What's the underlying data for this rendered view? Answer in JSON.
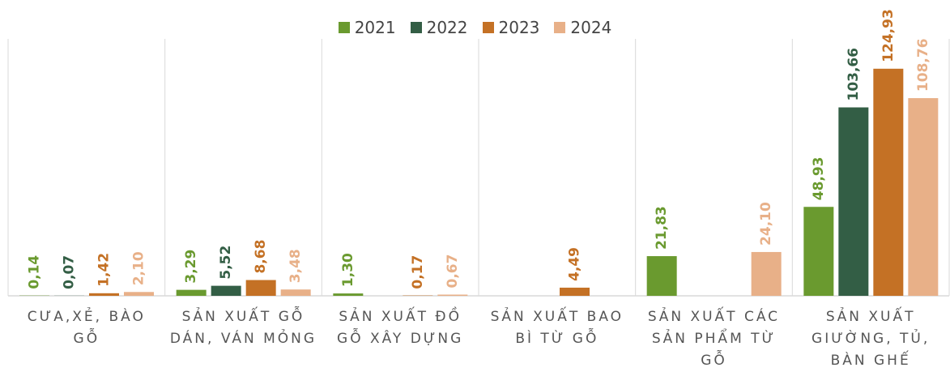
{
  "chart_data": {
    "type": "bar",
    "categories": [
      "CƯA,XẺ, BÀO GỖ",
      "SẢN XUẤT GỖ DÁN, VÁN MỎNG",
      "SẢN XUẤT ĐỒ GỖ XÂY DỰNG",
      "SẢN XUẤT BAO BÌ TỪ GỖ",
      "SẢN XUẤT CÁC SẢN PHẨM TỪ GỖ",
      "SẢN XUẤT GIƯỜNG, TỦ, BÀN GHẾ"
    ],
    "series": [
      {
        "name": "2021",
        "color": "#6a9a2f",
        "values": [
          0.14,
          3.29,
          1.3,
          null,
          21.83,
          48.93
        ],
        "value_labels": [
          "0,14",
          "3,29",
          "1,30",
          null,
          "21,83",
          "48,93"
        ]
      },
      {
        "name": "2022",
        "color": "#335e45",
        "values": [
          0.07,
          5.52,
          null,
          null,
          null,
          103.66
        ],
        "value_labels": [
          "0,07",
          "5,52",
          null,
          null,
          null,
          "103,66"
        ]
      },
      {
        "name": "2023",
        "color": "#c47125",
        "values": [
          1.42,
          8.68,
          0.17,
          4.49,
          null,
          124.93
        ],
        "value_labels": [
          "1,42",
          "8,68",
          "0,17",
          "4,49",
          null,
          "124,93"
        ]
      },
      {
        "name": "2024",
        "color": "#e8b088",
        "values": [
          2.1,
          3.48,
          0.67,
          null,
          24.1,
          108.76
        ],
        "value_labels": [
          "2,10",
          "3,48",
          "0,67",
          null,
          "24,10",
          "108,76"
        ]
      }
    ],
    "ylim": [
      0,
      140
    ],
    "legend": "top"
  }
}
